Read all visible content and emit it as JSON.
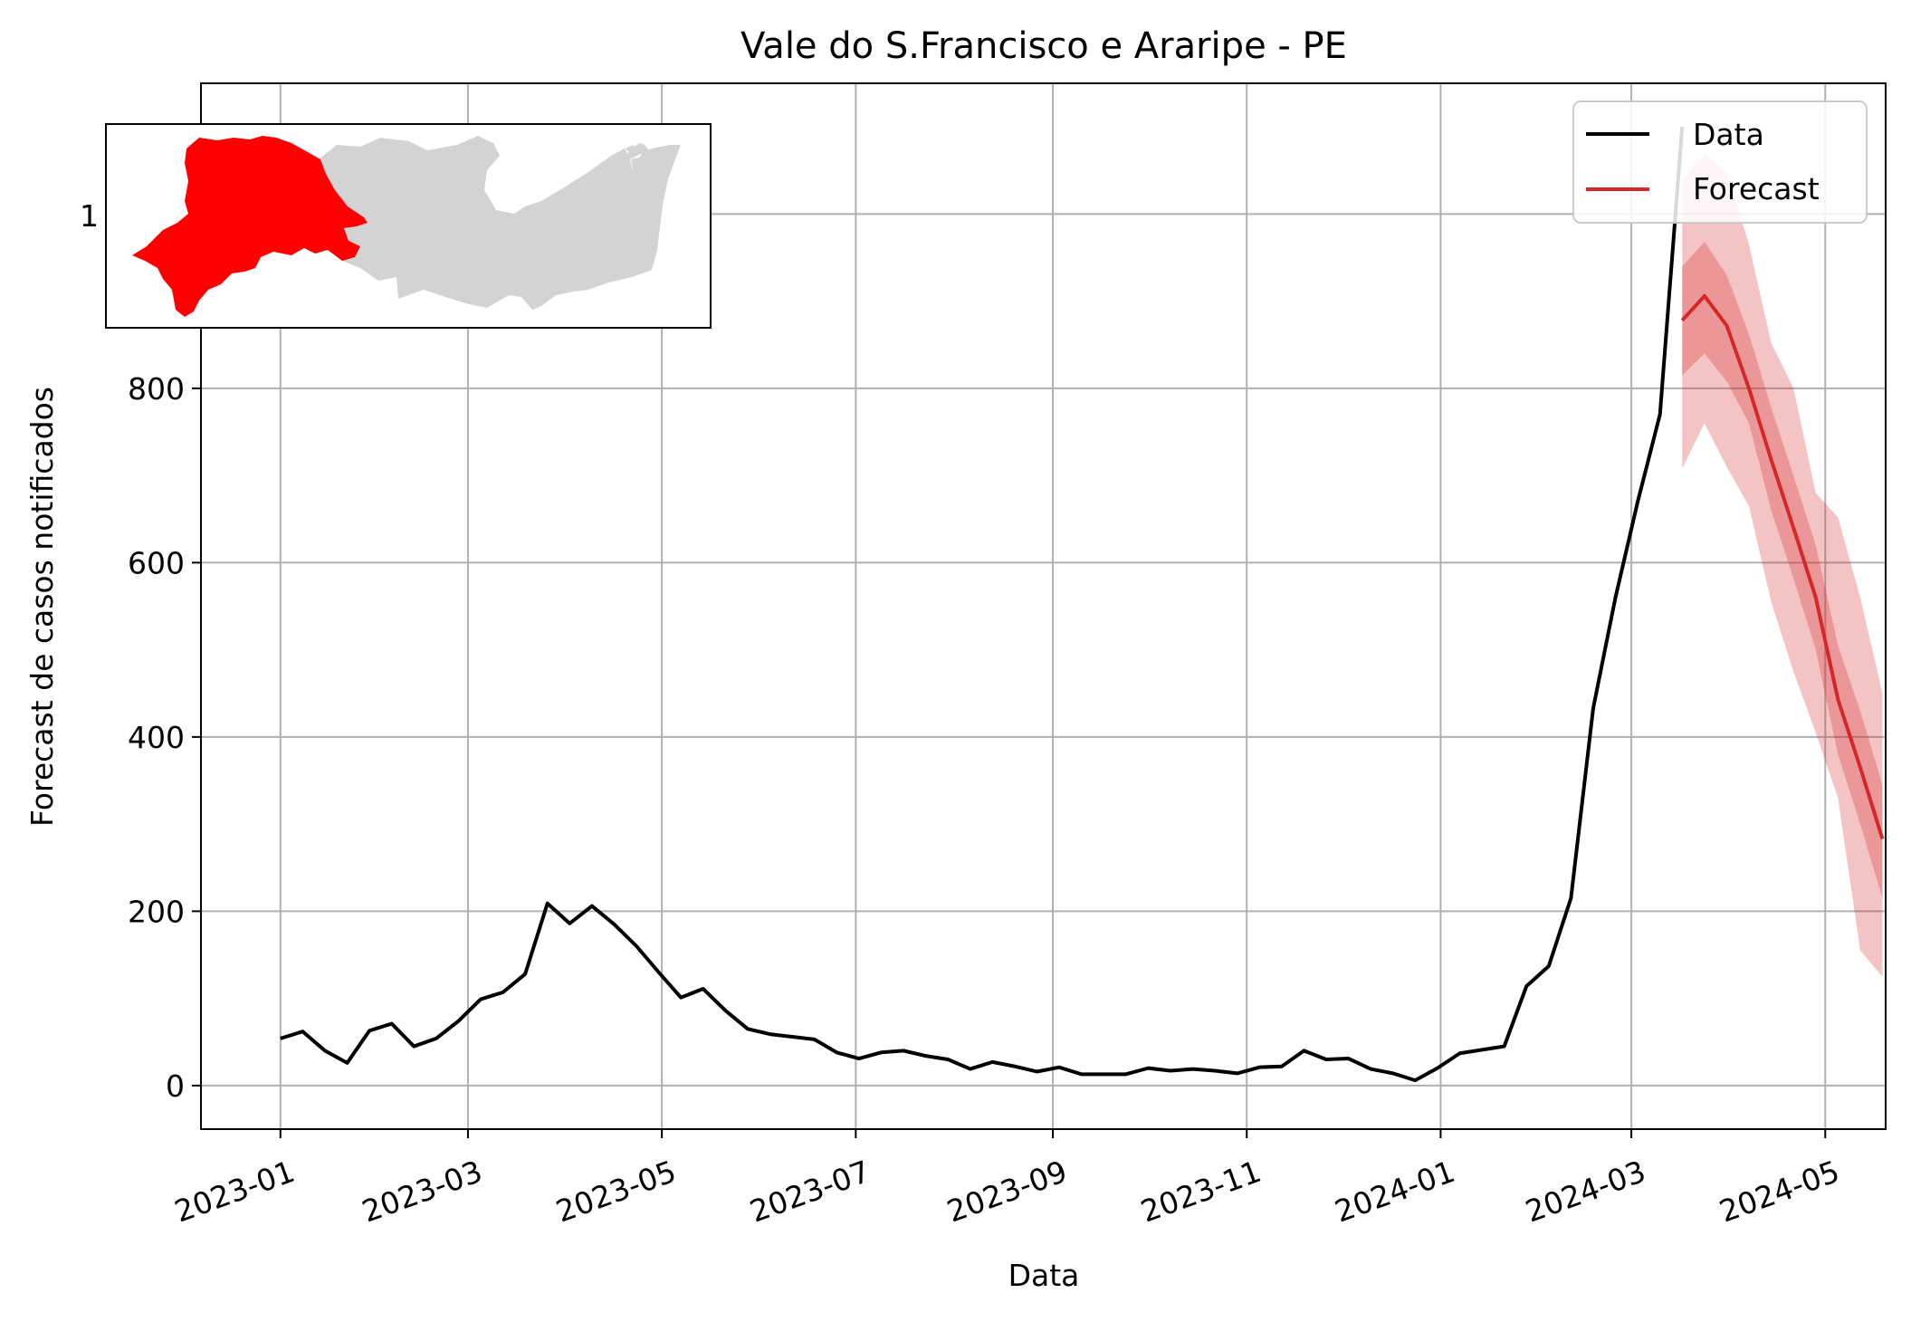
{
  "chart_data": {
    "type": "line",
    "title": "Vale do S.Francisco e Araripe - PE",
    "xlabel": "Data",
    "ylabel": "Forecast de casos notificados",
    "x_ticks": [
      "2023-01",
      "2023-03",
      "2023-05",
      "2023-07",
      "2023-09",
      "2023-11",
      "2024-01",
      "2024-03",
      "2024-05"
    ],
    "y_ticks": [
      0,
      200,
      400,
      600,
      800
    ],
    "y_tick_labels": [
      "0",
      "200",
      "400",
      "600",
      "800"
    ],
    "partial_tick_label": "1",
    "ylim": [
      -50,
      1150
    ],
    "xlim": [
      "2022-12-07",
      "2024-05-20"
    ],
    "grid": true,
    "legend": {
      "position": "top-right",
      "entries": [
        "Data",
        "Forecast"
      ]
    },
    "colors": {
      "data": "#000000",
      "forecast": "#d62728",
      "band": "#d62728",
      "map_highlight": "#ff0000",
      "map_other": "#d3d3d3"
    },
    "series": [
      {
        "name": "Data",
        "x": [
          "2023-01-01",
          "2023-01-08",
          "2023-01-15",
          "2023-01-22",
          "2023-01-29",
          "2023-02-05",
          "2023-02-12",
          "2023-02-19",
          "2023-02-26",
          "2023-03-05",
          "2023-03-12",
          "2023-03-19",
          "2023-03-26",
          "2023-04-02",
          "2023-04-09",
          "2023-04-16",
          "2023-04-23",
          "2023-04-30",
          "2023-05-07",
          "2023-05-14",
          "2023-05-21",
          "2023-05-28",
          "2023-06-04",
          "2023-06-11",
          "2023-06-18",
          "2023-06-25",
          "2023-07-02",
          "2023-07-09",
          "2023-07-16",
          "2023-07-23",
          "2023-07-30",
          "2023-08-06",
          "2023-08-13",
          "2023-08-20",
          "2023-08-27",
          "2023-09-03",
          "2023-09-10",
          "2023-09-17",
          "2023-09-24",
          "2023-10-01",
          "2023-10-08",
          "2023-10-15",
          "2023-10-22",
          "2023-10-29",
          "2023-11-05",
          "2023-11-12",
          "2023-11-19",
          "2023-11-26",
          "2023-12-03",
          "2023-12-10",
          "2023-12-17",
          "2023-12-24",
          "2023-12-31",
          "2024-01-07",
          "2024-01-14",
          "2024-01-21",
          "2024-01-28",
          "2024-02-04",
          "2024-02-11",
          "2024-02-18",
          "2024-02-25",
          "2024-03-03",
          "2024-03-10",
          "2024-03-17"
        ],
        "values": [
          54,
          62,
          40,
          26,
          63,
          71,
          45,
          54,
          74,
          99,
          107,
          128,
          209,
          186,
          206,
          185,
          160,
          130,
          101,
          111,
          86,
          65,
          59,
          56,
          53,
          38,
          31,
          38,
          40,
          34,
          30,
          19,
          27,
          22,
          16,
          21,
          13,
          13,
          13,
          20,
          17,
          19,
          17,
          14,
          21,
          22,
          40,
          30,
          31,
          19,
          14,
          6,
          20,
          37,
          41,
          45,
          114,
          137,
          215,
          433,
          560,
          670,
          770,
          1100
        ]
      },
      {
        "name": "Forecast",
        "x": [
          "2024-03-17",
          "2024-03-24",
          "2024-03-31",
          "2024-04-07",
          "2024-04-14",
          "2024-04-21",
          "2024-04-28",
          "2024-05-05",
          "2024-05-12",
          "2024-05-19"
        ],
        "values": [
          878,
          906,
          872,
          800,
          718,
          640,
          560,
          443,
          365,
          283
        ],
        "lower_50": [
          815,
          840,
          808,
          760,
          660,
          582,
          500,
          380,
          300,
          215
        ],
        "upper_50": [
          940,
          968,
          930,
          862,
          778,
          700,
          620,
          505,
          430,
          345
        ],
        "lower_95": [
          708,
          760,
          710,
          665,
          555,
          475,
          405,
          330,
          155,
          125
        ],
        "upper_95": [
          1040,
          1068,
          1048,
          965,
          852,
          800,
          680,
          652,
          560,
          450
        ]
      }
    ]
  }
}
